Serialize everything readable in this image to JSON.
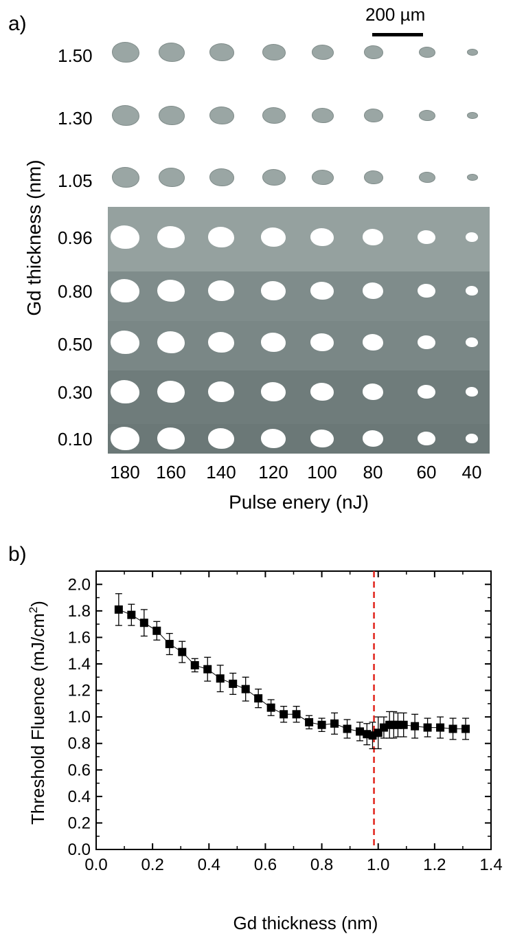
{
  "panel_a": {
    "label": "a)",
    "scale_bar_label": "200 µm",
    "ylabel": "Gd thickness (nm)",
    "xlabel": "Pulse enery (nJ)",
    "row_labels": [
      "1.50",
      "1.30",
      "1.05",
      "0.96",
      "0.80",
      "0.50",
      "0.30",
      "0.10"
    ],
    "col_labels": [
      "180",
      "160",
      "140",
      "120",
      "100",
      "80",
      "60",
      "40"
    ]
  },
  "panel_b": {
    "label": "b)"
  },
  "chart_data": {
    "type": "scatter",
    "title": "",
    "xlabel": "Gd thickness (nm)",
    "ylabel": "Threshold Fluence (mJ/cm",
    "ylabel_sup": "2",
    "ylabel_close": ")",
    "xlim": [
      0.0,
      1.4
    ],
    "ylim": [
      0.0,
      2.1
    ],
    "x_ticks": [
      "0.0",
      "0.2",
      "0.4",
      "0.6",
      "0.8",
      "1.0",
      "1.2",
      "1.4"
    ],
    "y_ticks": [
      "0.0",
      "0.2",
      "0.4",
      "0.6",
      "0.8",
      "1.0",
      "1.2",
      "1.4",
      "1.6",
      "1.8",
      "2.0"
    ],
    "series": [
      {
        "name": "threshold fluence",
        "x": [
          0.08,
          0.125,
          0.17,
          0.215,
          0.26,
          0.305,
          0.35,
          0.395,
          0.44,
          0.485,
          0.53,
          0.575,
          0.62,
          0.665,
          0.71,
          0.755,
          0.8,
          0.845,
          0.89,
          0.935,
          0.96,
          0.98,
          1.0,
          1.02,
          1.04,
          1.055,
          1.07,
          1.09,
          1.13,
          1.175,
          1.22,
          1.265,
          1.31
        ],
        "y": [
          1.81,
          1.77,
          1.71,
          1.65,
          1.55,
          1.49,
          1.39,
          1.36,
          1.29,
          1.25,
          1.21,
          1.14,
          1.07,
          1.02,
          1.02,
          0.96,
          0.94,
          0.95,
          0.91,
          0.89,
          0.87,
          0.86,
          0.88,
          0.92,
          0.94,
          0.94,
          0.94,
          0.94,
          0.93,
          0.92,
          0.92,
          0.91,
          0.91
        ],
        "error": [
          0.12,
          0.08,
          0.1,
          0.07,
          0.08,
          0.08,
          0.05,
          0.09,
          0.1,
          0.08,
          0.09,
          0.07,
          0.06,
          0.06,
          0.06,
          0.05,
          0.05,
          0.08,
          0.07,
          0.07,
          0.08,
          0.1,
          0.12,
          0.08,
          0.1,
          0.1,
          0.09,
          0.09,
          0.09,
          0.07,
          0.08,
          0.08,
          0.08
        ],
        "color": "#000000"
      }
    ],
    "reference_line_x": 0.985,
    "reference_line_color": "#e0221a"
  }
}
